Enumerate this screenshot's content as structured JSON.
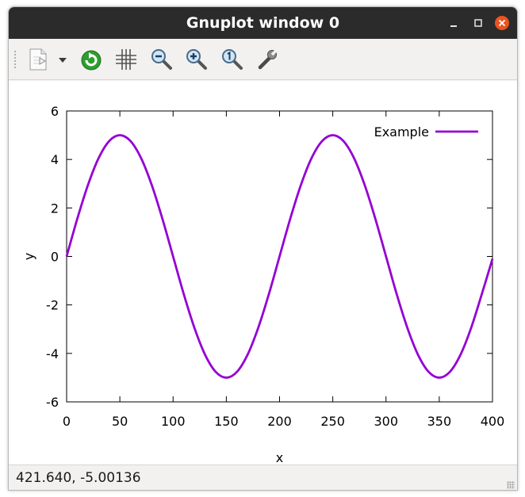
{
  "window": {
    "title": "Gnuplot window 0"
  },
  "toolbar": {
    "items": [
      {
        "name": "export-menu-button",
        "icon": "document-export-icon"
      },
      {
        "name": "export-dropdown-button",
        "icon": "dropdown-arrow-icon"
      },
      {
        "name": "replot-button",
        "icon": "refresh-icon"
      },
      {
        "name": "grid-button",
        "icon": "grid-icon"
      },
      {
        "name": "zoom-previous-button",
        "icon": "zoom-out-icon"
      },
      {
        "name": "zoom-next-button",
        "icon": "zoom-in-icon"
      },
      {
        "name": "autoscale-button",
        "icon": "zoom-original-icon"
      },
      {
        "name": "settings-button",
        "icon": "wrench-icon"
      }
    ]
  },
  "status": {
    "text": "421.640, -5.00136"
  },
  "colors": {
    "series": "#9400d3",
    "titlebar": "#2b2b2b",
    "close_button": "#e95420",
    "refresh_icon": "#2e9e2e"
  },
  "chart_data": {
    "type": "line",
    "title": "",
    "xlabel": "x",
    "ylabel": "y",
    "xlim": [
      0,
      400
    ],
    "ylim": [
      -6,
      6
    ],
    "xticks": [
      0,
      50,
      100,
      150,
      200,
      250,
      300,
      350,
      400
    ],
    "yticks": [
      -6,
      -4,
      -2,
      0,
      2,
      4,
      6
    ],
    "xtick_labels": [
      "0",
      "50",
      "100",
      "150",
      "200",
      "250",
      "300",
      "350",
      "400"
    ],
    "ytick_labels": [
      "-6",
      "-4",
      "-2",
      "0",
      "2",
      "4",
      "6"
    ],
    "grid": false,
    "legend_position": "top-right",
    "series": [
      {
        "name": "Example",
        "color": "#9400d3",
        "x": [
          0,
          10,
          20,
          30,
          40,
          50,
          60,
          70,
          80,
          90,
          100,
          110,
          120,
          130,
          140,
          150,
          160,
          170,
          180,
          190,
          200,
          210,
          220,
          230,
          240,
          250,
          260,
          270,
          280,
          290,
          300,
          310,
          320,
          330,
          340,
          350,
          360,
          370,
          380,
          390,
          400
        ],
        "y": [
          0,
          1.55,
          2.94,
          4.05,
          4.76,
          5.0,
          4.76,
          4.05,
          2.94,
          1.55,
          0,
          -1.55,
          -2.94,
          -4.05,
          -4.76,
          -5.0,
          -4.76,
          -4.05,
          -2.94,
          -1.55,
          0,
          1.55,
          2.94,
          4.05,
          4.76,
          5.0,
          4.76,
          4.05,
          2.94,
          1.55,
          0,
          -1.55,
          -2.94,
          -4.05,
          -4.76,
          -5.0,
          -4.76,
          -4.05,
          -2.94,
          -1.55,
          -0.1
        ]
      }
    ]
  }
}
